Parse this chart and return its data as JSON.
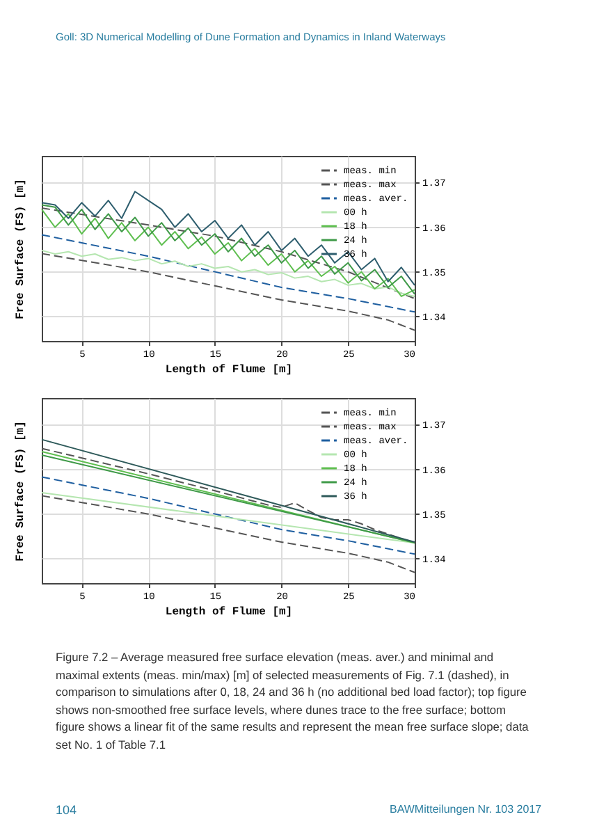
{
  "chart_data": [
    {
      "type": "line",
      "annotations": [
        "Goll: 3D Numerical Modelling of Dune Formation and Dynamics in Inland Waterways"
      ],
      "xlabel": "Length of Flume [m]",
      "ylabel": "Free Surface (FS) [m]",
      "xlim": [
        2,
        30
      ],
      "xticks": [
        5,
        10,
        15,
        20,
        25,
        30
      ],
      "ylim": [
        1.3345,
        1.376
      ],
      "yticks": [
        1.34,
        1.35,
        1.36,
        1.37
      ],
      "grid": true,
      "legend": "top right",
      "series": [
        {
          "name": "meas. min",
          "color": "#555555",
          "line_style": "dashed",
          "x": [
            2,
            10,
            20,
            25,
            28,
            30
          ],
          "values": [
            1.3541,
            1.35,
            1.3437,
            1.3412,
            1.3392,
            1.3369
          ]
        },
        {
          "name": "meas. max",
          "color": "#555555",
          "line_style": "dashed",
          "x": [
            2,
            10,
            15,
            20,
            25,
            30
          ],
          "values": [
            1.3643,
            1.3605,
            1.358,
            1.3545,
            1.35,
            1.344
          ]
        },
        {
          "name": "meas. aver.",
          "color": "#1f5fa0",
          "line_style": "dashed",
          "x": [
            2,
            10,
            15,
            20,
            25,
            30
          ],
          "values": [
            1.3583,
            1.3535,
            1.35,
            1.3465,
            1.344,
            1.341
          ]
        },
        {
          "name": "00 h",
          "color": "#b5e6b0",
          "line_style": "solid",
          "x": [
            2,
            3,
            4,
            5,
            6,
            7,
            8,
            9,
            10,
            11,
            12,
            13,
            14,
            15,
            16,
            17,
            18,
            19,
            20,
            21,
            22,
            23,
            24,
            25,
            26,
            27,
            28,
            29,
            30
          ],
          "values": [
            1.3548,
            1.354,
            1.3545,
            1.3535,
            1.354,
            1.3528,
            1.3532,
            1.3525,
            1.353,
            1.3518,
            1.3524,
            1.3512,
            1.3518,
            1.3508,
            1.3512,
            1.35,
            1.3505,
            1.3494,
            1.3498,
            1.3486,
            1.349,
            1.3478,
            1.3483,
            1.347,
            1.3474,
            1.3462,
            1.3466,
            1.3452,
            1.3445
          ]
        },
        {
          "name": "18 h",
          "color": "#5fbf50",
          "line_style": "solid",
          "x": [
            2,
            3,
            4,
            5,
            6,
            7,
            8,
            9,
            10,
            11,
            12,
            13,
            14,
            15,
            16,
            17,
            18,
            19,
            20,
            21,
            22,
            23,
            24,
            25,
            26,
            27,
            28,
            29,
            30
          ],
          "values": [
            1.364,
            1.36,
            1.363,
            1.3585,
            1.362,
            1.3575,
            1.361,
            1.357,
            1.36,
            1.356,
            1.359,
            1.3552,
            1.3578,
            1.354,
            1.3565,
            1.3525,
            1.3552,
            1.3515,
            1.354,
            1.35,
            1.3525,
            1.349,
            1.3512,
            1.3475,
            1.35,
            1.3462,
            1.3485,
            1.3445,
            1.346
          ]
        },
        {
          "name": "24 h",
          "color": "#3f9a48",
          "line_style": "solid",
          "x": [
            2,
            3,
            4,
            5,
            6,
            7,
            8,
            9,
            10,
            11,
            12,
            13,
            14,
            15,
            16,
            17,
            18,
            19,
            20,
            21,
            22,
            23,
            24,
            25,
            26,
            27,
            28,
            29,
            30
          ],
          "values": [
            1.365,
            1.3645,
            1.3605,
            1.364,
            1.3595,
            1.363,
            1.359,
            1.3622,
            1.358,
            1.361,
            1.357,
            1.3598,
            1.356,
            1.3585,
            1.3545,
            1.3575,
            1.3535,
            1.356,
            1.352,
            1.3548,
            1.3508,
            1.3535,
            1.3495,
            1.352,
            1.348,
            1.3505,
            1.3465,
            1.349,
            1.345
          ]
        },
        {
          "name": "36 h",
          "color": "#2e5e6e",
          "line_style": "solid",
          "x": [
            2,
            3,
            4,
            5,
            6,
            7,
            8,
            9,
            10,
            11,
            12,
            13,
            14,
            15,
            16,
            17,
            18,
            19,
            20,
            21,
            22,
            23,
            24,
            25,
            26,
            27,
            28,
            29,
            30
          ],
          "values": [
            1.3655,
            1.365,
            1.362,
            1.3655,
            1.3625,
            1.366,
            1.362,
            1.368,
            1.366,
            1.364,
            1.36,
            1.363,
            1.359,
            1.3615,
            1.3575,
            1.3605,
            1.356,
            1.359,
            1.3548,
            1.3575,
            1.3535,
            1.356,
            1.352,
            1.3545,
            1.3505,
            1.353,
            1.3478,
            1.351,
            1.347
          ]
        }
      ]
    },
    {
      "type": "line",
      "annotations": [
        "Figure 7.2 – Average measured free surface elevation (meas. aver.) and minimal and maximal extents (meas. min/max) [m] of selected measurements of Fig. 7.1 (dashed), in comparison to simulations after 0, 18, 24 and 36 h (no additional bed load factor); top figure shows non-smoothed free surface levels, where dunes trace to the free surface; bottom figure shows a linear fit of the same results and represent the mean free surface slope; data set No. 1 of Table 7.1",
        "104",
        "BAWMitteilungen Nr. 103 2017"
      ],
      "xlabel": "Length of Flume [m]",
      "ylabel": "Free Surface (FS) [m]",
      "xlim": [
        2,
        30
      ],
      "xticks": [
        5,
        10,
        15,
        20,
        25,
        30
      ],
      "ylim": [
        1.3345,
        1.376
      ],
      "yticks": [
        1.34,
        1.35,
        1.36,
        1.37
      ],
      "grid": true,
      "legend": "top right",
      "series": [
        {
          "name": "meas. min",
          "color": "#555555",
          "line_style": "dashed",
          "x": [
            2,
            10,
            20,
            25,
            28,
            30
          ],
          "values": [
            1.3541,
            1.35,
            1.3437,
            1.3412,
            1.3392,
            1.3369
          ]
        },
        {
          "name": "meas. max",
          "color": "#555555",
          "line_style": "dashed",
          "x": [
            2,
            10,
            15,
            19,
            20,
            21,
            22,
            23,
            24,
            25,
            26,
            27,
            30
          ],
          "values": [
            1.3647,
            1.359,
            1.3552,
            1.352,
            1.3515,
            1.3525,
            1.3508,
            1.3492,
            1.3487,
            1.3487,
            1.3478,
            1.3465,
            1.3435
          ]
        },
        {
          "name": "meas. aver.",
          "color": "#1f5fa0",
          "line_style": "dashed",
          "x": [
            2,
            10,
            15,
            20,
            25,
            30
          ],
          "values": [
            1.3583,
            1.3535,
            1.35,
            1.3465,
            1.344,
            1.341
          ]
        },
        {
          "name": "00 h",
          "color": "#b5e6b0",
          "line_style": "solid",
          "x": [
            2,
            30
          ],
          "values": [
            1.3548,
            1.3435
          ]
        },
        {
          "name": "18 h",
          "color": "#5fbf50",
          "line_style": "solid",
          "x": [
            2,
            30
          ],
          "values": [
            1.364,
            1.3435
          ]
        },
        {
          "name": "24 h",
          "color": "#3f9a48",
          "line_style": "solid",
          "x": [
            2,
            30
          ],
          "values": [
            1.3632,
            1.3436
          ]
        },
        {
          "name": "36 h",
          "color": "#2e5a5a",
          "line_style": "solid",
          "x": [
            2,
            30
          ],
          "values": [
            1.3667,
            1.3437
          ]
        }
      ]
    }
  ]
}
